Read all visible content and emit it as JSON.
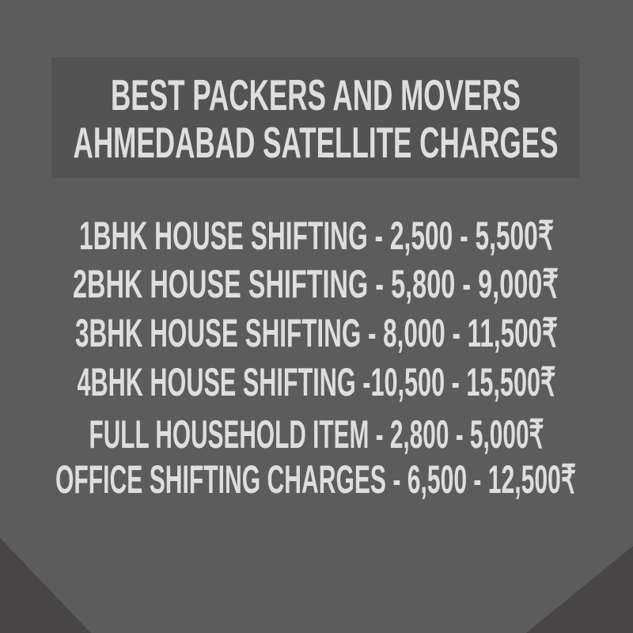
{
  "colors": {
    "background": "#5c5c5c",
    "title_box": "#535353",
    "corners": "#474545",
    "text": "#dedede"
  },
  "title": {
    "line1": "BEST PACKERS AND MOVERS",
    "line2": "AHMEDABAD SATELLITE CHARGES"
  },
  "charges": [
    "1BHK HOUSE SHIFTING - 2,500 - 5,500₹",
    "2BHK HOUSE SHIFTING - 5,800 - 9,000₹",
    "3BHK HOUSE SHIFTING - 8,000 - 11,500₹",
    "4BHK HOUSE SHIFTING -10,500 - 15,500₹",
    "FULL HOUSEHOLD ITEM - 2,800 - 5,000₹",
    "OFFICE SHIFTING CHARGES - 6,500 - 12,500₹"
  ]
}
